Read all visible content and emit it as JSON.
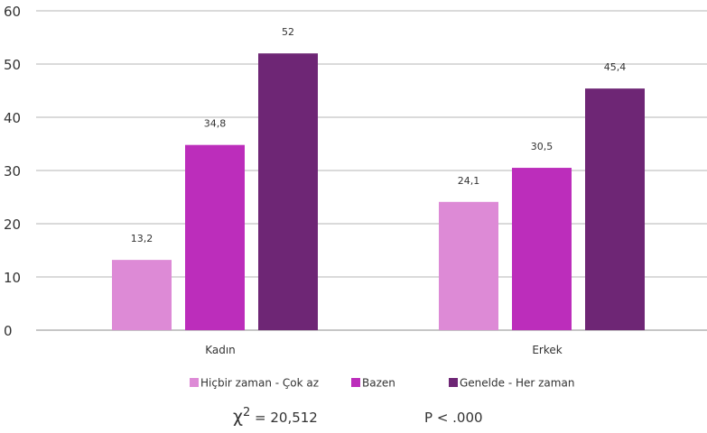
{
  "chart_data": {
    "type": "bar",
    "categories": [
      "Kadın",
      "Erkek"
    ],
    "series": [
      {
        "name": "Hiçbir zaman - Çok az",
        "values": [
          13.2,
          24.1
        ],
        "labels": [
          "13,2",
          "24,1"
        ],
        "color": "#dd8ad6"
      },
      {
        "name": "Bazen",
        "values": [
          34.8,
          30.5
        ],
        "labels": [
          "34,8",
          "30,5"
        ],
        "color": "#bc2dbb"
      },
      {
        "name": "Genelde - Her zaman",
        "values": [
          52,
          45.4
        ],
        "labels": [
          "52",
          "45,4"
        ],
        "color": "#6e2675"
      }
    ],
    "yticks": [
      "0",
      "10",
      "20",
      "30",
      "40",
      "50",
      "60"
    ],
    "ylim": [
      0,
      60
    ],
    "grid": true,
    "legend_position": "bottom",
    "annotations": {
      "chi_label": "χ",
      "chi_sup": "2",
      "chi_value": " = 20,512",
      "p_value": "P < .000"
    }
  }
}
